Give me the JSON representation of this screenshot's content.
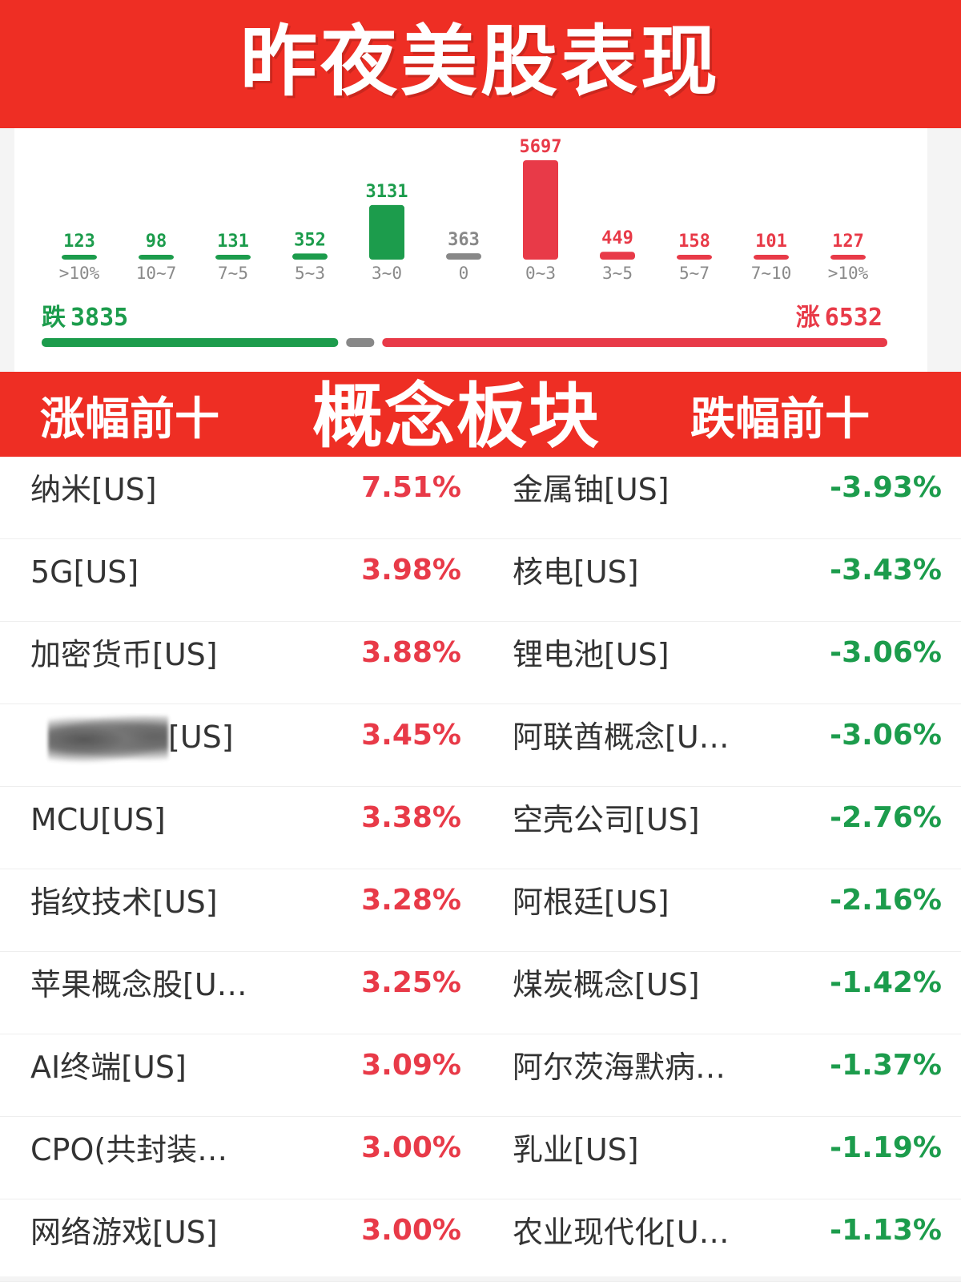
{
  "header": {
    "title": "昨夜美股表现"
  },
  "distribution": {
    "buckets": [
      {
        "label": ">10%",
        "count": "123",
        "value": 123,
        "color": "#1c9c4c"
      },
      {
        "label": "10~7",
        "count": "98",
        "value": 98,
        "color": "#1c9c4c"
      },
      {
        "label": "7~5",
        "count": "131",
        "value": 131,
        "color": "#1c9c4c"
      },
      {
        "label": "5~3",
        "count": "352",
        "value": 352,
        "color": "#1c9c4c"
      },
      {
        "label": "3~0",
        "count": "3131",
        "value": 3131,
        "color": "#1c9c4c"
      },
      {
        "label": "0",
        "count": "363",
        "value": 363,
        "color": "#888888"
      },
      {
        "label": "0~3",
        "count": "5697",
        "value": 5697,
        "color": "#e83a48"
      },
      {
        "label": "3~5",
        "count": "449",
        "value": 449,
        "color": "#e83a48"
      },
      {
        "label": "5~7",
        "count": "158",
        "value": 158,
        "color": "#e83a48"
      },
      {
        "label": "7~10",
        "count": "101",
        "value": 101,
        "color": "#e83a48"
      },
      {
        "label": ">10%",
        "count": "127",
        "value": 127,
        "color": "#e83a48"
      }
    ],
    "fall": {
      "label": "跌",
      "value": "3835"
    },
    "rise": {
      "label": "涨",
      "value": "6532"
    },
    "flat_count": 363,
    "colors": {
      "fall": "#1c9c4c",
      "rise": "#e83a48",
      "flat": "#888888"
    }
  },
  "band": {
    "left_title": "涨幅前十",
    "center_title": "概念板块",
    "right_title": "跌幅前十"
  },
  "top_gainers": [
    {
      "name": "纳米[US]",
      "pct": "7.51%"
    },
    {
      "name": "5G[US]",
      "pct": "3.98%"
    },
    {
      "name": "加密货币[US]",
      "pct": "3.88%"
    },
    {
      "name": "[US]",
      "pct": "3.45%",
      "obscured": true
    },
    {
      "name": "MCU[US]",
      "pct": "3.38%"
    },
    {
      "name": "指纹技术[US]",
      "pct": "3.28%"
    },
    {
      "name": "苹果概念股[U…",
      "pct": "3.25%"
    },
    {
      "name": "AI终端[US]",
      "pct": "3.09%"
    },
    {
      "name": "CPO(共封装…",
      "pct": "3.00%"
    },
    {
      "name": "网络游戏[US]",
      "pct": "3.00%"
    }
  ],
  "top_losers": [
    {
      "name": "金属铀[US]",
      "pct": "-3.93%"
    },
    {
      "name": "核电[US]",
      "pct": "-3.43%"
    },
    {
      "name": "锂电池[US]",
      "pct": "-3.06%"
    },
    {
      "name": "阿联酋概念[U…",
      "pct": "-3.06%"
    },
    {
      "name": "空壳公司[US]",
      "pct": "-2.76%"
    },
    {
      "name": "阿根廷[US]",
      "pct": "-2.16%"
    },
    {
      "name": "煤炭概念[US]",
      "pct": "-1.42%"
    },
    {
      "name": "阿尔茨海默病…",
      "pct": "-1.37%"
    },
    {
      "name": "乳业[US]",
      "pct": "-1.19%"
    },
    {
      "name": "农业现代化[U…",
      "pct": "-1.13%"
    }
  ]
}
